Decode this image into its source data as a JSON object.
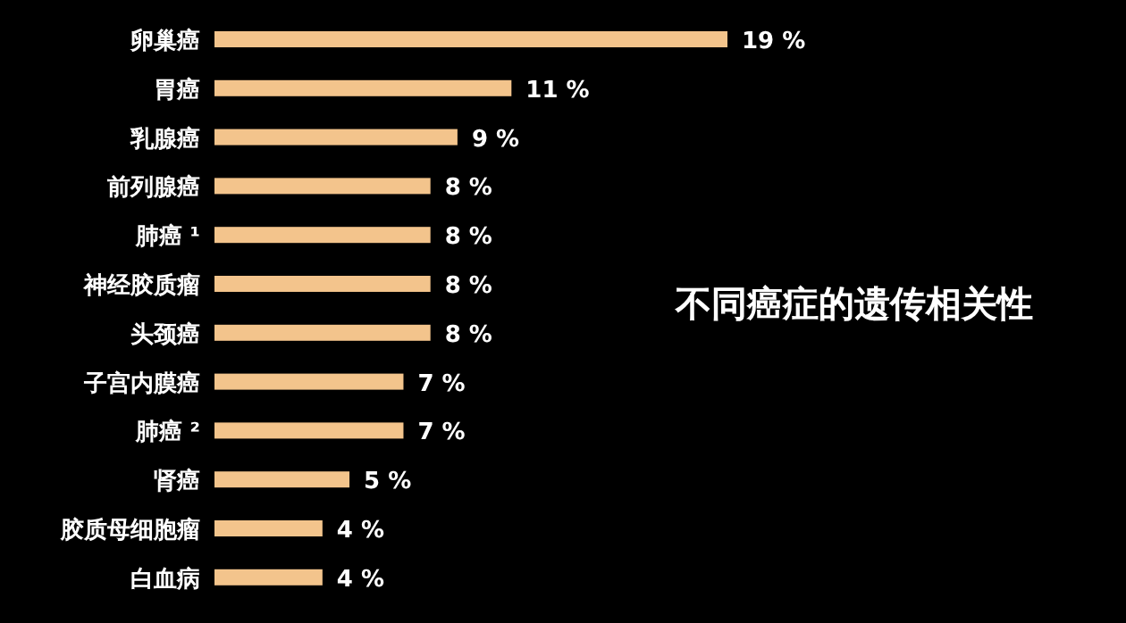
{
  "chart_data": {
    "type": "bar",
    "orientation": "horizontal",
    "title": "不同癌症的遗传相关性",
    "color": "#f3c48c",
    "categories": [
      "卵巢癌",
      "胃癌",
      "乳腺癌",
      "前列腺癌",
      "肺癌 ¹",
      "神经胶质瘤",
      "头颈癌",
      "子宫内膜癌",
      "肺癌 ²",
      "肾癌",
      "胶质母细胞瘤",
      "白血病"
    ],
    "values": [
      19,
      11,
      9,
      8,
      8,
      8,
      8,
      7,
      7,
      5,
      4,
      4
    ],
    "value_labels": [
      "19 %",
      "11 %",
      "9 %",
      "8 %",
      "8 %",
      "8 %",
      "8 %",
      "7 %",
      "7 %",
      "5 %",
      "4 %",
      "4 %"
    ]
  }
}
